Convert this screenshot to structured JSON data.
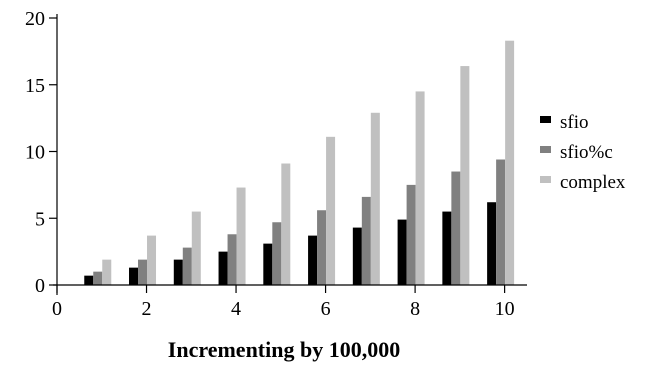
{
  "chart_data": {
    "type": "bar",
    "xlabel": "Incrementing by 100,000",
    "ylabel": "",
    "title": "",
    "categories": [
      1,
      2,
      3,
      4,
      5,
      6,
      7,
      8,
      9,
      10
    ],
    "x_ticks": [
      0,
      2,
      4,
      6,
      8,
      10
    ],
    "y_ticks": [
      0,
      5,
      10,
      15,
      20
    ],
    "xlim": [
      0,
      10.5
    ],
    "ylim": [
      0,
      20
    ],
    "grid": false,
    "legend_position": "right",
    "series": [
      {
        "name": "sfio",
        "color": "#000000",
        "values": [
          0.7,
          1.3,
          1.9,
          2.5,
          3.1,
          3.7,
          4.3,
          4.9,
          5.5,
          6.2
        ]
      },
      {
        "name": "sfio%c",
        "color": "#808080",
        "values": [
          1.0,
          1.9,
          2.8,
          3.8,
          4.7,
          5.6,
          6.6,
          7.5,
          8.5,
          9.4
        ]
      },
      {
        "name": "complex",
        "color": "#c0c0c0",
        "values": [
          1.9,
          3.7,
          5.5,
          7.3,
          9.1,
          11.1,
          12.9,
          14.5,
          16.4,
          18.3
        ]
      }
    ]
  }
}
